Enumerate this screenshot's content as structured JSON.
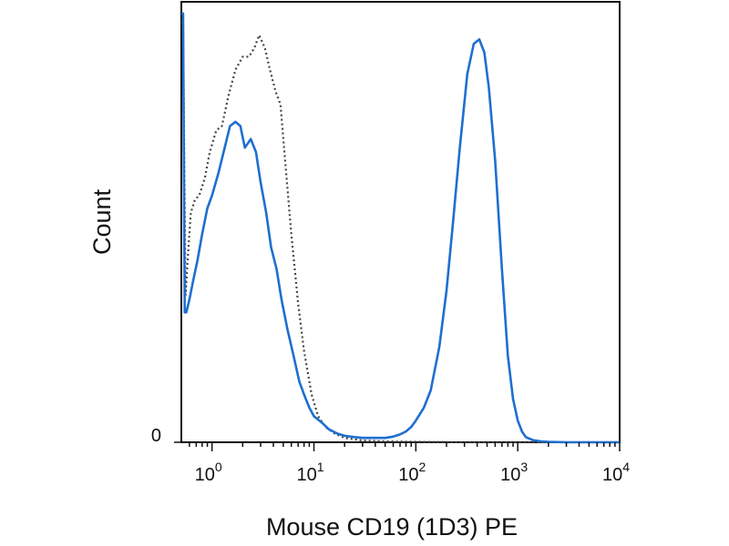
{
  "chart_data": {
    "type": "line",
    "xlabel": "Mouse CD19 (1D3) PE",
    "ylabel": "Count",
    "x_scale": "log",
    "xlim": [
      0.5,
      10000
    ],
    "ylim": [
      0,
      1
    ],
    "grid": false,
    "x_ticks": [
      {
        "value": 1,
        "base": "10",
        "exp": "0"
      },
      {
        "value": 10,
        "base": "10",
        "exp": "1"
      },
      {
        "value": 100,
        "base": "10",
        "exp": "2"
      },
      {
        "value": 1000,
        "base": "10",
        "exp": "3"
      },
      {
        "value": 10000,
        "base": "10",
        "exp": "4"
      }
    ],
    "y_ticks": [
      {
        "value": 0,
        "label": "0"
      }
    ],
    "series": [
      {
        "style": "dotted",
        "color": "#444444",
        "x": [
          0.5,
          0.52,
          0.55,
          0.58,
          0.62,
          0.68,
          0.75,
          0.85,
          0.95,
          1.1,
          1.25,
          1.45,
          1.7,
          2.0,
          2.3,
          2.6,
          2.9,
          3.3,
          3.7,
          4.2,
          4.7,
          5.3,
          6.0,
          7.0,
          8.0,
          9.5,
          11,
          13,
          16,
          20,
          30,
          50,
          100,
          300,
          1000,
          10000
        ],
        "y": [
          0.97,
          0.97,
          0.34,
          0.43,
          0.53,
          0.56,
          0.57,
          0.61,
          0.67,
          0.72,
          0.73,
          0.8,
          0.86,
          0.89,
          0.89,
          0.91,
          0.94,
          0.91,
          0.86,
          0.81,
          0.78,
          0.63,
          0.48,
          0.32,
          0.21,
          0.11,
          0.06,
          0.035,
          0.02,
          0.01,
          0.004,
          0.002,
          0.001,
          0.0,
          0.0,
          0.0
        ]
      },
      {
        "style": "solid",
        "color": "#1e6fd0",
        "x": [
          0.5,
          0.52,
          0.54,
          0.56,
          0.6,
          0.65,
          0.72,
          0.8,
          0.9,
          1.0,
          1.15,
          1.3,
          1.5,
          1.7,
          1.9,
          2.1,
          2.4,
          2.7,
          3.0,
          3.4,
          3.8,
          4.3,
          4.8,
          5.5,
          6.3,
          7.2,
          8.0,
          9.0,
          10,
          12,
          14,
          17,
          20,
          25,
          30,
          40,
          50,
          60,
          70,
          80,
          90,
          100,
          120,
          140,
          170,
          200,
          230,
          270,
          320,
          370,
          420,
          470,
          520,
          600,
          700,
          800,
          900,
          1000,
          1100,
          1200,
          1400,
          1700,
          2000,
          3000,
          10000
        ],
        "y": [
          0.99,
          0.99,
          0.3,
          0.3,
          0.33,
          0.37,
          0.42,
          0.48,
          0.54,
          0.57,
          0.62,
          0.67,
          0.73,
          0.74,
          0.73,
          0.68,
          0.7,
          0.67,
          0.6,
          0.53,
          0.45,
          0.4,
          0.33,
          0.26,
          0.2,
          0.14,
          0.11,
          0.08,
          0.06,
          0.045,
          0.03,
          0.02,
          0.015,
          0.012,
          0.01,
          0.01,
          0.01,
          0.013,
          0.018,
          0.025,
          0.035,
          0.05,
          0.08,
          0.12,
          0.22,
          0.35,
          0.5,
          0.68,
          0.85,
          0.92,
          0.93,
          0.9,
          0.82,
          0.65,
          0.4,
          0.2,
          0.1,
          0.05,
          0.025,
          0.012,
          0.005,
          0.002,
          0.001,
          0.0,
          0.0
        ]
      }
    ]
  }
}
